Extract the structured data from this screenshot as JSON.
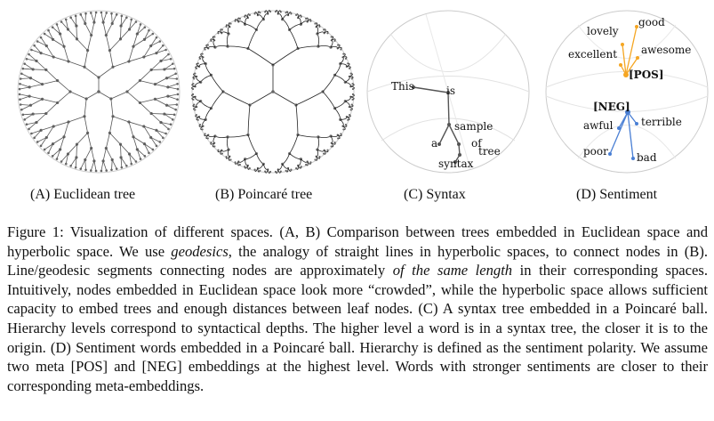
{
  "panels": {
    "a_label": "(A) Euclidean tree",
    "b_label": "(B) Poincaré tree",
    "c_label": "(C) Syntax",
    "d_label": "(D) Sentiment"
  },
  "syntax_words": {
    "this": "This",
    "is": "is",
    "sample": "sample",
    "a": "a",
    "of": "of",
    "tree": "tree",
    "syntax": "syntax"
  },
  "sentiment_words": {
    "good": "good",
    "lovely": "lovely",
    "awesome": "awesome",
    "excellent": "excellent",
    "pos": "[POS]",
    "neg": "[NEG]",
    "awful": "awful",
    "terrible": "terrible",
    "poor": "poor",
    "bad": "bad"
  },
  "colors": {
    "positive": "#f5a623",
    "negative": "#4a7fd4",
    "tree_edge": "#555555",
    "node": "#666666"
  },
  "caption": {
    "p1": "Figure 1:   Visualization of different spaces. (A, B) Comparison between trees embedded in Euclidean space and hyperbolic space. We use ",
    "em1": "geodesics",
    "p2": ", the analogy of straight lines in hyperbolic spaces, to connect nodes in (B). Line/geodesic segments connecting nodes are approximately ",
    "em2": "of the same length",
    "p3": " in their corresponding spaces. Intuitively, nodes embedded in Euclidean space look more “crowded”, while the hyperbolic space allows sufficient capacity to embed trees and enough distances between leaf nodes. (C) A syntax tree embedded in a Poincaré ball. Hierarchy levels correspond to syntactical depths. The higher level a word is in a syntax tree, the closer it is to the origin. (D) Sentiment words embedded in a Poincaré ball. Hierarchy is defined as the sentiment polarity. We assume two meta [POS] and [NEG] embeddings at the highest level. Words with stronger sentiments are closer to their corresponding meta-embeddings."
  }
}
